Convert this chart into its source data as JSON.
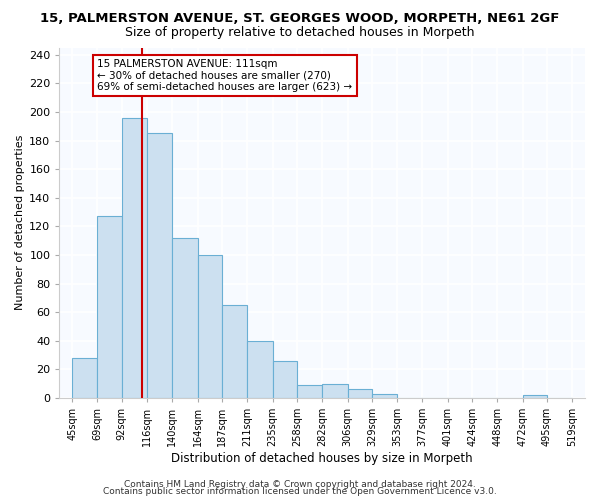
{
  "title_line1": "15, PALMERSTON AVENUE, ST. GEORGES WOOD, MORPETH, NE61 2GF",
  "title_line2": "Size of property relative to detached houses in Morpeth",
  "xlabel": "Distribution of detached houses by size in Morpeth",
  "ylabel": "Number of detached properties",
  "bar_lefts": [
    45,
    69,
    92,
    116,
    140,
    164,
    187,
    211,
    235,
    258,
    282,
    306,
    329,
    353,
    377,
    401,
    424,
    448,
    472,
    495
  ],
  "bar_widths": [
    24,
    23,
    24,
    24,
    24,
    23,
    24,
    24,
    23,
    24,
    24,
    23,
    24,
    24,
    24,
    23,
    24,
    24,
    23,
    24
  ],
  "bar_heights": [
    28,
    127,
    196,
    185,
    112,
    100,
    65,
    40,
    26,
    9,
    10,
    6,
    3,
    0,
    0,
    0,
    0,
    0,
    2,
    0
  ],
  "bar_color": "#cce0f0",
  "bar_edge_color": "#6aafd4",
  "reference_line_x": 111,
  "reference_line_color": "#cc0000",
  "annotation_text": "15 PALMERSTON AVENUE: 111sqm\n← 30% of detached houses are smaller (270)\n69% of semi-detached houses are larger (623) →",
  "annotation_box_color": "white",
  "annotation_box_edge_color": "#cc0000",
  "ylim": [
    0,
    245
  ],
  "xlim": [
    33,
    531
  ],
  "tick_positions": [
    45,
    69,
    92,
    116,
    140,
    164,
    187,
    211,
    235,
    258,
    282,
    306,
    329,
    353,
    377,
    401,
    424,
    448,
    472,
    495,
    519
  ],
  "tick_labels": [
    "45sqm",
    "69sqm",
    "92sqm",
    "116sqm",
    "140sqm",
    "164sqm",
    "187sqm",
    "211sqm",
    "235sqm",
    "258sqm",
    "282sqm",
    "306sqm",
    "329sqm",
    "353sqm",
    "377sqm",
    "401sqm",
    "424sqm",
    "448sqm",
    "472sqm",
    "495sqm",
    "519sqm"
  ],
  "yticks": [
    0,
    20,
    40,
    60,
    80,
    100,
    120,
    140,
    160,
    180,
    200,
    220,
    240
  ],
  "footer_line1": "Contains HM Land Registry data © Crown copyright and database right 2024.",
  "footer_line2": "Contains public sector information licensed under the Open Government Licence v3.0.",
  "background_color": "#ffffff",
  "plot_bg_color": "#f7faff",
  "grid_color": "#ffffff",
  "title_fontsize": 9.5,
  "subtitle_fontsize": 9,
  "axis_label_fontsize": 8.5,
  "tick_fontsize": 7,
  "ylabel_fontsize": 8,
  "footer_fontsize": 6.5,
  "annotation_fontsize": 7.5
}
